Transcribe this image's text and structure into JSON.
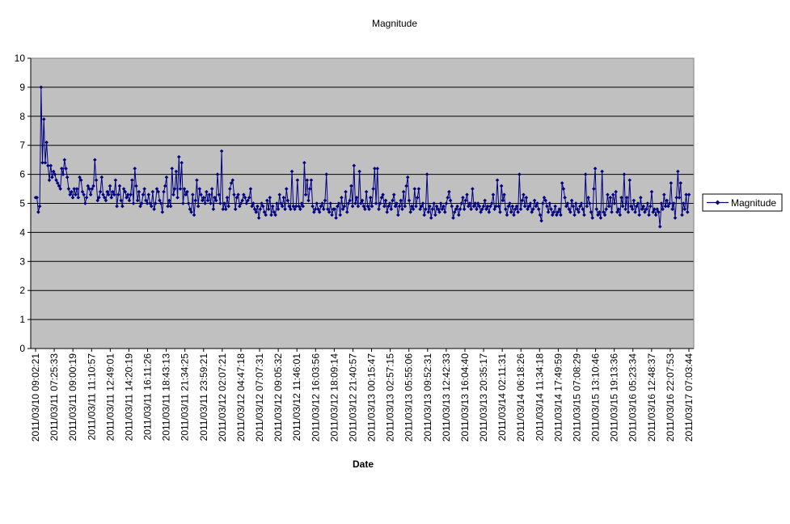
{
  "chart_data": {
    "type": "line",
    "title": "Magnitude",
    "xlabel": "Date",
    "ylabel": "",
    "ylim": [
      0,
      10
    ],
    "yticks": [
      0,
      1,
      2,
      3,
      4,
      5,
      6,
      7,
      8,
      9,
      10
    ],
    "grid": true,
    "legend_position": "right",
    "colors": {
      "plot_bg": "#c0c0c0",
      "series": "#000080",
      "gridline": "#000000"
    },
    "x_tick_labels": [
      "2011/03/10 09:02:21",
      "2011/03/11 07:25:33",
      "2011/03/11 09:00:19",
      "2011/03/11 11:10:57",
      "2011/03/11 12:49:01",
      "2011/03/11 14:20:19",
      "2011/03/11 16:11:26",
      "2011/03/11 18:43:13",
      "2011/03/11 21:34:25",
      "2011/03/11 23:59:21",
      "2011/03/12 02:07:21",
      "2011/03/12 04:47:18",
      "2011/03/12 07:07:31",
      "2011/03/12 09:05:32",
      "2011/03/12 11:46:01",
      "2011/03/12 16:03:56",
      "2011/03/12 18:09:14",
      "2011/03/12 21:40:57",
      "2011/03/13 00:15:47",
      "2011/03/13 02:57:15",
      "2011/03/13 05:55:06",
      "2011/03/13 09:52:31",
      "2011/03/13 12:42:33",
      "2011/03/13 16:04:40",
      "2011/03/13 20:35:17",
      "2011/03/14 02:11:31",
      "2011/03/14 06:18:26",
      "2011/03/14 11:34:18",
      "2011/03/14 17:49:59",
      "2011/03/15 07:08:29",
      "2011/03/15 13:10:46",
      "2011/03/15 19:13:36",
      "2011/03/16 05:23:34",
      "2011/03/16 12:48:37",
      "2011/03/16 22:07:53",
      "2011/03/17 07:03:44"
    ],
    "series": [
      {
        "name": "Magnitude",
        "values": [
          5.2,
          5.2,
          4.7,
          4.9,
          9.0,
          6.4,
          7.9,
          6.4,
          7.1,
          6.3,
          5.8,
          6.3,
          5.9,
          6.1,
          6.0,
          5.8,
          5.7,
          5.6,
          5.5,
          6.2,
          6.0,
          6.5,
          6.2,
          5.9,
          5.5,
          5.3,
          5.4,
          5.2,
          5.5,
          5.3,
          5.5,
          5.2,
          5.9,
          5.8,
          5.4,
          5.3,
          5.0,
          5.2,
          5.6,
          5.5,
          5.3,
          5.5,
          5.6,
          6.5,
          5.8,
          5.1,
          5.2,
          5.4,
          5.9,
          5.3,
          5.2,
          5.1,
          5.4,
          5.3,
          5.6,
          5.2,
          5.4,
          5.3,
          5.8,
          4.9,
          5.3,
          5.6,
          5.1,
          4.9,
          5.5,
          5.4,
          5.2,
          5.3,
          5.1,
          5.3,
          5.8,
          5.0,
          6.2,
          5.6,
          5.1,
          5.4,
          4.9,
          5.0,
          5.3,
          5.5,
          5.1,
          5.0,
          5.3,
          5.0,
          4.9,
          5.4,
          4.8,
          5.0,
          5.5,
          5.4,
          5.1,
          5.0,
          4.7,
          5.4,
          5.6,
          5.9,
          4.9,
          5.1,
          4.9,
          6.2,
          5.3,
          5.5,
          6.1,
          5.2,
          6.6,
          5.5,
          6.4,
          5.0,
          5.5,
          5.3,
          5.4,
          5.0,
          4.8,
          4.7,
          5.3,
          4.6,
          5.1,
          5.8,
          4.9,
          5.5,
          5.3,
          5.1,
          5.2,
          5.0,
          5.4,
          5.1,
          5.3,
          5.0,
          5.5,
          4.8,
          5.2,
          5.1,
          6.0,
          5.3,
          5.0,
          6.8,
          4.8,
          5.0,
          4.8,
          5.2,
          4.9,
          5.5,
          5.7,
          5.8,
          5.3,
          4.8,
          5.2,
          5.3,
          4.9,
          5.0,
          5.1,
          5.3,
          5.2,
          5.0,
          5.1,
          5.2,
          5.5,
          4.9,
          5.0,
          4.8,
          4.7,
          4.9,
          4.5,
          4.8,
          5.0,
          4.9,
          4.7,
          4.6,
          5.1,
          4.8,
          5.2,
          4.6,
          4.9,
          4.7,
          4.6,
          5.0,
          4.8,
          5.3,
          5.0,
          4.9,
          5.2,
          4.8,
          5.5,
          5.1,
          4.9,
          4.8,
          6.1,
          4.9,
          4.8,
          4.9,
          5.8,
          4.9,
          4.8,
          5.0,
          4.9,
          6.4,
          5.3,
          5.8,
          5.1,
          5.5,
          5.8,
          4.9,
          4.7,
          4.8,
          5.0,
          4.8,
          4.7,
          4.9,
          5.0,
          4.8,
          5.1,
          6.0,
          4.8,
          4.7,
          5.0,
          4.6,
          4.8,
          4.8,
          4.5,
          4.9,
          5.0,
          4.6,
          5.2,
          4.8,
          4.9,
          5.4,
          4.7,
          5.0,
          5.1,
          5.6,
          4.9,
          6.3,
          5.0,
          5.2,
          4.9,
          6.1,
          5.0,
          5.1,
          4.9,
          4.8,
          5.4,
          4.9,
          4.8,
          5.2,
          4.9,
          5.5,
          6.2,
          5.0,
          6.2,
          4.8,
          5.0,
          5.2,
          5.3,
          4.9,
          5.1,
          4.7,
          4.9,
          5.0,
          4.8,
          5.1,
          5.3,
          4.9,
          5.0,
          4.6,
          4.9,
          5.1,
          4.8,
          5.4,
          4.9,
          5.6,
          5.9,
          5.1,
          4.7,
          4.9,
          4.8,
          5.5,
          4.9,
          5.2,
          5.5,
          4.8,
          4.9,
          5.0,
          4.6,
          4.8,
          6.0,
          4.7,
          4.9,
          4.5,
          4.8,
          5.0,
          4.6,
          4.9,
          4.8,
          4.7,
          5.0,
          4.8,
          4.9,
          4.7,
          5.0,
          5.2,
          5.4,
          5.1,
          4.9,
          4.5,
          4.7,
          4.8,
          4.9,
          4.6,
          4.8,
          5.0,
          5.2,
          4.8,
          5.1,
          5.3,
          4.9,
          5.0,
          4.8,
          5.5,
          4.9,
          5.0,
          4.8,
          5.0,
          4.9,
          4.7,
          4.8,
          4.9,
          5.1,
          4.8,
          4.9,
          4.7,
          4.9,
          5.0,
          5.3,
          4.8,
          4.9,
          5.8,
          4.9,
          4.7,
          5.6,
          5.1,
          5.3,
          4.8,
          4.6,
          4.9,
          5.0,
          4.7,
          4.9,
          4.6,
          4.8,
          4.9,
          4.7,
          6.0,
          4.8,
          5.1,
          5.3,
          4.9,
          5.2,
          4.8,
          4.9,
          5.0,
          4.7,
          4.8,
          5.1,
          4.9,
          5.0,
          4.8,
          4.6,
          4.4,
          5.0,
          5.2,
          5.1,
          4.9,
          4.7,
          5.0,
          4.8,
          4.6,
          4.7,
          4.9,
          4.6,
          4.7,
          4.8,
          4.6,
          5.7,
          5.5,
          5.2,
          4.9,
          5.0,
          4.8,
          4.7,
          5.1,
          4.9,
          4.6,
          5.0,
          4.8,
          4.7,
          4.9,
          5.0,
          4.8,
          4.6,
          6.0,
          4.9,
          5.2,
          5.0,
          4.7,
          4.5,
          5.5,
          6.2,
          4.8,
          4.6,
          4.7,
          4.5,
          6.1,
          4.7,
          4.6,
          4.8,
          5.3,
          4.9,
          5.2,
          4.7,
          5.3,
          5.0,
          5.4,
          4.7,
          4.8,
          4.6,
          5.2,
          4.9,
          6.0,
          4.8,
          5.2,
          4.7,
          5.8,
          4.9,
          4.8,
          5.1,
          4.7,
          4.9,
          5.0,
          4.6,
          5.2,
          4.8,
          4.9,
          4.7,
          4.8,
          5.0,
          4.6,
          4.9,
          5.4,
          4.7,
          4.8,
          4.6,
          4.8,
          4.7,
          4.2,
          5.0,
          4.8,
          5.3,
          4.9,
          5.1,
          4.9,
          5.0,
          5.7,
          4.8,
          5.0,
          4.5,
          5.2,
          6.1,
          5.2,
          5.7,
          4.6,
          5.0,
          4.8,
          5.3,
          4.7,
          5.3
        ]
      }
    ]
  }
}
